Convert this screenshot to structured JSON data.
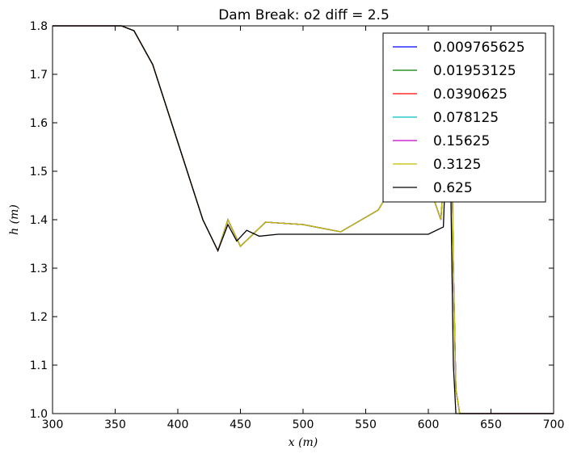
{
  "chart_data": {
    "type": "line",
    "title": "Dam Break: o2 diff = 2.5",
    "xlabel": "x (m)",
    "ylabel": "h (m)",
    "xlim": [
      300,
      700
    ],
    "ylim": [
      1.0,
      1.8
    ],
    "xticks": [
      "300",
      "350",
      "400",
      "450",
      "500",
      "550",
      "600",
      "650",
      "700"
    ],
    "yticks": [
      "1.0",
      "1.1",
      "1.2",
      "1.3",
      "1.4",
      "1.5",
      "1.6",
      "1.7",
      "1.8"
    ],
    "legend_position": "top-right",
    "grid": false,
    "series": [
      {
        "name": "0.009765625",
        "color": "#0000ff",
        "x": [
          300,
          355,
          365,
          380,
          400,
          420,
          432,
          440,
          450,
          470,
          500,
          530,
          560,
          590,
          610,
          618,
          620,
          622,
          625,
          700
        ],
        "y": [
          1.8,
          1.8,
          1.79,
          1.72,
          1.56,
          1.4,
          1.336,
          1.4,
          1.345,
          1.395,
          1.39,
          1.375,
          1.42,
          1.55,
          1.4,
          1.7,
          1.3,
          1.05,
          1.0,
          1.0
        ]
      },
      {
        "name": "0.01953125",
        "color": "#008000",
        "x": [
          300,
          355,
          365,
          380,
          400,
          420,
          432,
          440,
          450,
          470,
          500,
          530,
          560,
          590,
          610,
          618,
          620,
          622,
          625,
          700
        ],
        "y": [
          1.8,
          1.8,
          1.79,
          1.72,
          1.56,
          1.4,
          1.336,
          1.4,
          1.345,
          1.395,
          1.39,
          1.375,
          1.42,
          1.55,
          1.4,
          1.7,
          1.3,
          1.05,
          1.0,
          1.0
        ]
      },
      {
        "name": "0.0390625",
        "color": "#ff0000",
        "x": [
          300,
          355,
          365,
          380,
          400,
          420,
          432,
          440,
          450,
          470,
          500,
          530,
          560,
          590,
          610,
          618,
          620,
          622,
          625,
          700
        ],
        "y": [
          1.8,
          1.8,
          1.79,
          1.72,
          1.56,
          1.4,
          1.336,
          1.4,
          1.345,
          1.395,
          1.39,
          1.375,
          1.42,
          1.55,
          1.4,
          1.7,
          1.3,
          1.05,
          1.0,
          1.0
        ]
      },
      {
        "name": "0.078125",
        "color": "#00bfbf",
        "x": [
          300,
          355,
          365,
          380,
          400,
          420,
          432,
          440,
          450,
          470,
          500,
          530,
          560,
          590,
          610,
          618,
          620,
          622,
          625,
          700
        ],
        "y": [
          1.8,
          1.8,
          1.79,
          1.72,
          1.56,
          1.4,
          1.336,
          1.4,
          1.345,
          1.395,
          1.39,
          1.375,
          1.42,
          1.55,
          1.4,
          1.7,
          1.3,
          1.05,
          1.0,
          1.0
        ]
      },
      {
        "name": "0.15625",
        "color": "#bf00bf",
        "x": [
          300,
          355,
          365,
          380,
          400,
          420,
          432,
          440,
          450,
          470,
          500,
          530,
          560,
          590,
          610,
          618,
          620,
          622,
          625,
          700
        ],
        "y": [
          1.8,
          1.8,
          1.79,
          1.72,
          1.56,
          1.4,
          1.336,
          1.4,
          1.345,
          1.395,
          1.39,
          1.375,
          1.42,
          1.55,
          1.4,
          1.7,
          1.3,
          1.05,
          1.0,
          1.0
        ]
      },
      {
        "name": "0.3125",
        "color": "#bfbf00",
        "x": [
          300,
          355,
          365,
          380,
          400,
          420,
          432,
          440,
          450,
          470,
          500,
          530,
          560,
          590,
          610,
          618,
          620,
          622,
          625,
          700
        ],
        "y": [
          1.8,
          1.8,
          1.79,
          1.72,
          1.56,
          1.4,
          1.336,
          1.4,
          1.345,
          1.395,
          1.39,
          1.375,
          1.42,
          1.55,
          1.4,
          1.7,
          1.3,
          1.05,
          1.0,
          1.0
        ]
      },
      {
        "name": "0.625",
        "color": "#000000",
        "x": [
          300,
          355,
          365,
          380,
          400,
          420,
          432,
          440,
          447,
          455,
          465,
          480,
          500,
          550,
          600,
          612,
          615,
          618,
          620,
          622,
          700
        ],
        "y": [
          1.8,
          1.8,
          1.79,
          1.72,
          1.56,
          1.4,
          1.336,
          1.39,
          1.356,
          1.378,
          1.366,
          1.37,
          1.37,
          1.37,
          1.37,
          1.385,
          1.6,
          1.45,
          1.1,
          1.0,
          1.0
        ]
      }
    ]
  }
}
